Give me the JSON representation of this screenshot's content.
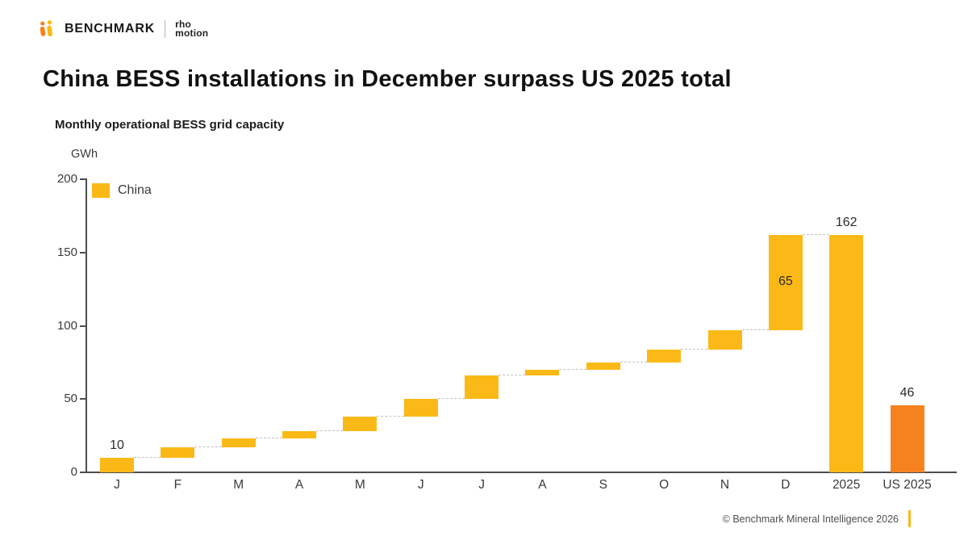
{
  "header": {
    "brand": "BENCHMARK",
    "partner": {
      "line1": "rho",
      "line2": "motion"
    }
  },
  "title": "China BESS installations in December surpass US 2025 total",
  "subtitle": "Monthly operational BESS grid capacity",
  "footer": {
    "copyright": "© Benchmark Mineral Intelligence 2026"
  },
  "colors": {
    "china": "#FBB917",
    "us": "#F6821F",
    "axis": "#4D4D4D",
    "connector": "#C2C2C2",
    "accent": "#FBB917"
  },
  "chart_data": {
    "type": "bar",
    "subtype": "waterfall",
    "title": "Monthly operational BESS grid capacity",
    "ylabel": "GWh",
    "xlabel": "",
    "ylim": [
      0,
      200
    ],
    "yticks": [
      0,
      50,
      100,
      150,
      200
    ],
    "grid": false,
    "legend": [
      {
        "label": "China",
        "color": "#FBB917"
      }
    ],
    "legend_position": "top-left",
    "categories": [
      "J",
      "F",
      "M",
      "A",
      "M",
      "J",
      "J",
      "A",
      "S",
      "O",
      "N",
      "D",
      "2025",
      "US 2025"
    ],
    "bars": [
      {
        "category": "J",
        "start": 0,
        "end": 10,
        "value_label": "10",
        "label_pos": "above",
        "series": "china",
        "connect_next": true
      },
      {
        "category": "F",
        "start": 10,
        "end": 17,
        "series": "china",
        "connect_next": true
      },
      {
        "category": "M",
        "start": 17,
        "end": 23,
        "series": "china",
        "connect_next": true
      },
      {
        "category": "A",
        "start": 23,
        "end": 28,
        "series": "china",
        "connect_next": true
      },
      {
        "category": "M",
        "start": 28,
        "end": 38,
        "series": "china",
        "connect_next": true
      },
      {
        "category": "J",
        "start": 38,
        "end": 50,
        "series": "china",
        "connect_next": true
      },
      {
        "category": "J",
        "start": 50,
        "end": 66,
        "series": "china",
        "connect_next": true
      },
      {
        "category": "A",
        "start": 66,
        "end": 70,
        "series": "china",
        "connect_next": true
      },
      {
        "category": "S",
        "start": 70,
        "end": 75,
        "series": "china",
        "connect_next": true
      },
      {
        "category": "O",
        "start": 75,
        "end": 84,
        "series": "china",
        "connect_next": true
      },
      {
        "category": "N",
        "start": 84,
        "end": 97,
        "series": "china",
        "connect_next": true
      },
      {
        "category": "D",
        "start": 97,
        "end": 162,
        "value_label": "65",
        "label_pos": "inside",
        "series": "china",
        "connect_next": true
      },
      {
        "category": "2025",
        "start": 0,
        "end": 162,
        "value_label": "162",
        "label_pos": "above",
        "series": "china",
        "connect_next": false
      },
      {
        "category": "US 2025",
        "start": 0,
        "end": 46,
        "value_label": "46",
        "label_pos": "above",
        "series": "us",
        "connect_next": false
      }
    ]
  }
}
